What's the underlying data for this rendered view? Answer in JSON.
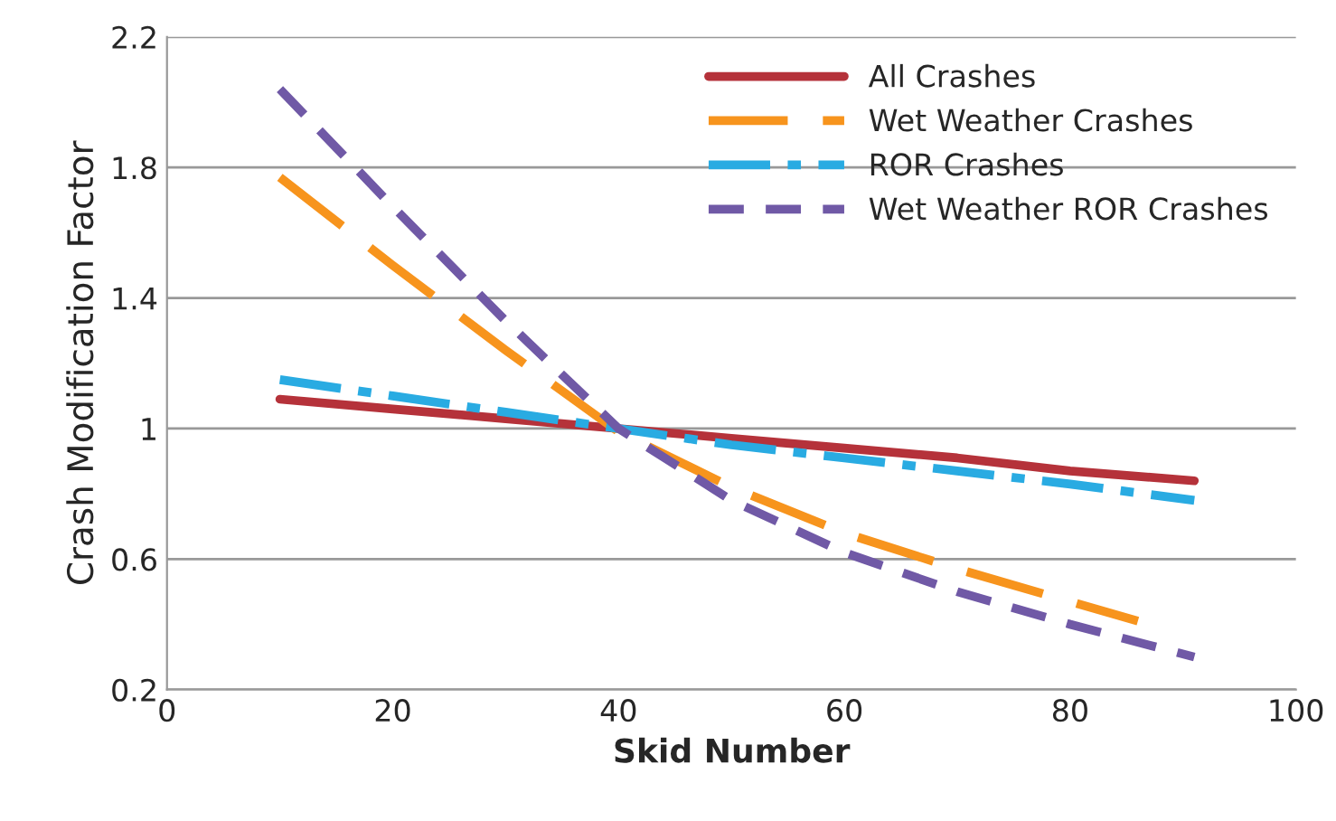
{
  "chart_data": {
    "type": "line",
    "xlabel": "Skid Number",
    "ylabel": "Crash Modification Factor",
    "xlim": [
      0,
      100
    ],
    "xticks": [
      0,
      20,
      40,
      60,
      80,
      100
    ],
    "ylim": [
      0.2,
      2.2
    ],
    "yticks": [
      {
        "value": 0.2,
        "label": "0.2"
      },
      {
        "value": 0.6,
        "label": "0.6"
      },
      {
        "value": 1,
        "label": "1"
      },
      {
        "value": 1.4,
        "label": "1.4"
      },
      {
        "value": 1.8,
        "label": "1.8"
      },
      {
        "value": 2.2,
        "label": "2.2"
      }
    ],
    "grid": "y",
    "legend": "top right",
    "marker": "none",
    "series": [
      {
        "name": "All Crashes",
        "color": "#b5323a",
        "line_style": "solid",
        "x": [
          10,
          20,
          30,
          40,
          50,
          60,
          70,
          80,
          91
        ],
        "values": [
          1.09,
          1.06,
          1.03,
          1.0,
          0.97,
          0.94,
          0.91,
          0.87,
          0.84
        ]
      },
      {
        "name": "Wet Weather Crashes",
        "color": "#f7941d",
        "line_style": "dashed",
        "x": [
          10,
          20,
          30,
          40,
          50,
          60,
          70,
          80,
          86
        ],
        "values": [
          1.77,
          1.5,
          1.24,
          0.99,
          0.82,
          0.68,
          0.57,
          0.47,
          0.41
        ]
      },
      {
        "name": "ROR Crashes",
        "color": "#29abe2",
        "line_style": "dashdot",
        "x": [
          10,
          20,
          30,
          40,
          50,
          60,
          70,
          80,
          91
        ],
        "values": [
          1.15,
          1.1,
          1.05,
          1.0,
          0.95,
          0.91,
          0.87,
          0.83,
          0.78
        ]
      },
      {
        "name": "Wet Weather ROR Crashes",
        "color": "#7059a6",
        "line_style": "dotted",
        "x": [
          10,
          20,
          30,
          40,
          50,
          60,
          70,
          80,
          91
        ],
        "values": [
          2.04,
          1.68,
          1.33,
          1.0,
          0.78,
          0.62,
          0.5,
          0.4,
          0.3
        ]
      }
    ]
  }
}
